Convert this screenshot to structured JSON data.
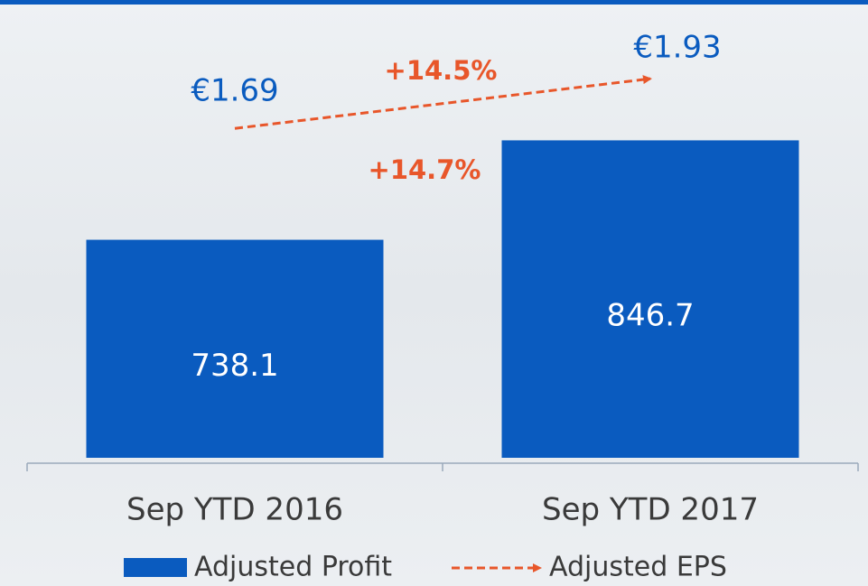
{
  "chart_data": {
    "type": "bar",
    "categories": [
      "Sep YTD 2016",
      "Sep YTD 2017"
    ],
    "ylim": [
      500,
      1000
    ],
    "y2lim": [
      0.1,
      2.31
    ],
    "series": [
      {
        "name": "Adjusted Profit",
        "color": "#0a5bbf",
        "values": [
          738.1,
          846.7
        ]
      },
      {
        "name": "Adjusted EPS",
        "color": "#e8562a",
        "axis": "y2",
        "values": [
          1.69,
          1.93
        ],
        "value_labels": [
          "€1.69",
          "€1.93"
        ]
      }
    ],
    "annotations": [
      "+14.5%",
      "+14.7%"
    ]
  }
}
